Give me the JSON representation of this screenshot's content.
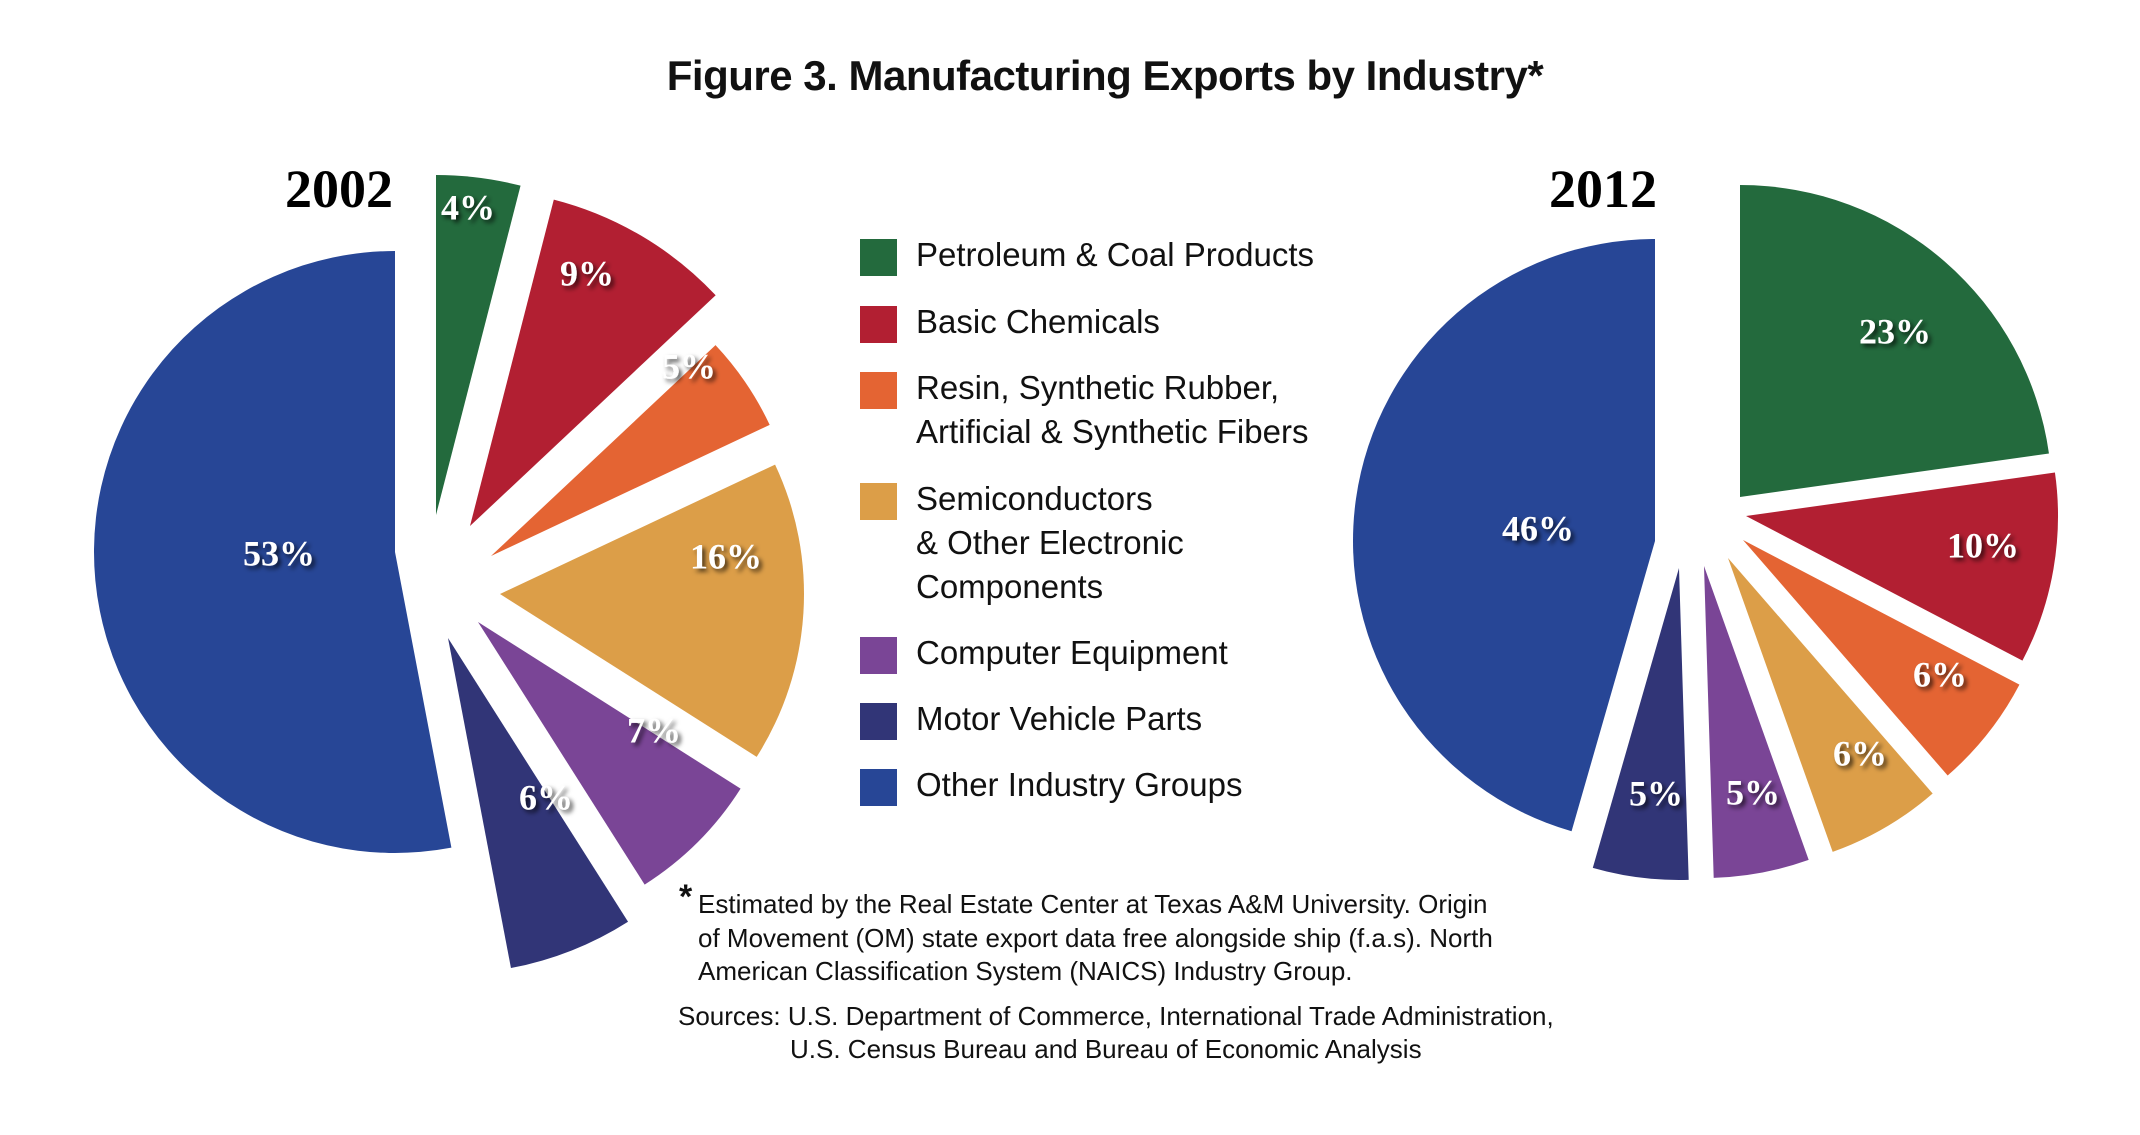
{
  "chart_data": {
    "type": "pie",
    "title": "Figure 3. Manufacturing Exports by Industry*",
    "legend_position": "center",
    "categories": [
      {
        "name": "Petroleum & Coal Products",
        "lines": [
          "Petroleum & Coal Products"
        ],
        "color": "#236a3d"
      },
      {
        "name": "Basic Chemicals",
        "lines": [
          "Basic Chemicals"
        ],
        "color": "#b21f32"
      },
      {
        "name": "Resin, Synthetic Rubber, Artificial & Synthetic Fibers",
        "lines": [
          "Resin, Synthetic Rubber,",
          "Artificial & Synthetic Fibers"
        ],
        "color": "#e46433"
      },
      {
        "name": "Semiconductors & Other Electronic Components",
        "lines": [
          "Semiconductors",
          "& Other Electronic",
          "Components"
        ],
        "color": "#dc9e48"
      },
      {
        "name": "Computer Equipment",
        "lines": [
          "Computer Equipment"
        ],
        "color": "#7a4596"
      },
      {
        "name": "Motor Vehicle Parts",
        "lines": [
          "Motor Vehicle Parts"
        ],
        "color": "#313577"
      },
      {
        "name": "Other Industry Groups",
        "lines": [
          "Other Industry Groups"
        ],
        "color": "#274696"
      }
    ],
    "series": [
      {
        "name": "2002",
        "values": [
          4,
          9,
          5,
          16,
          7,
          6,
          53
        ],
        "labels": [
          "4%",
          "9%",
          "5%",
          "16%",
          "7%",
          "6%",
          "53%"
        ]
      },
      {
        "name": "2012",
        "values": [
          23,
          10,
          6,
          6,
          5,
          5,
          46
        ],
        "labels": [
          "23%",
          "10%",
          "6%",
          "6%",
          "5%",
          "5%",
          "46%"
        ]
      }
    ]
  },
  "footnote": {
    "asterisk": "*",
    "lines": [
      "Estimated by the Real Estate Center at Texas A&M University. Origin",
      "of Movement (OM) state export data free alongside ship (f.a.s). North",
      "American Classification System (NAICS) Industry Group."
    ]
  },
  "sources": {
    "lines": [
      "Sources: U.S. Department of Commerce, International Trade Administration,",
      "U.S. Census Bureau and Bureau of Economic Analysis"
    ]
  }
}
